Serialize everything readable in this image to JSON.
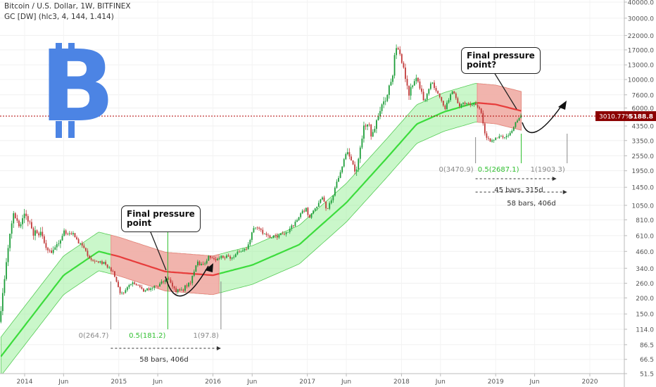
{
  "header": {
    "symbol_line": "Bitcoin / U.S. Dollar, 1W, BITFINEX",
    "indicator_line": "GC [DW] (hlc3, 4, 144, 1.414)"
  },
  "logo": {
    "glyph": "B",
    "color": "#4c84e4"
  },
  "colors": {
    "green_line": "#3cdc3c",
    "green_band": "#9ef09e",
    "red_line": "#e83c3c",
    "red_band": "#f8a8a8",
    "price_line": "#b00000",
    "candle_up": "#1e9e3a",
    "candle_down": "#c23a3a"
  },
  "chart_data": {
    "type": "candlestick",
    "y_scale": "log",
    "ylim": [
      51.5,
      40000
    ],
    "y_ticks": [
      "40000.0",
      "30000.0",
      "22000.0",
      "17000.0",
      "13000.0",
      "10000.0",
      "7600.0",
      "6000.0",
      "4350.0",
      "3350.0",
      "2550.0",
      "1950.0",
      "1450.0",
      "1050.0",
      "810.0",
      "610.0",
      "460.0",
      "340.0",
      "260.0",
      "200.0",
      "150.0",
      "114.0",
      "86.5",
      "66.5",
      "51.5"
    ],
    "x_ticks": [
      "2014",
      "Jun",
      "2015",
      "Jun",
      "2016",
      "Jun",
      "2017",
      "Jun",
      "2018",
      "Jun",
      "2019",
      "Jun",
      "2020"
    ],
    "current_price": {
      "label": "3010.77%",
      "value": "5188.8"
    },
    "price_path": [
      [
        "2013-10-01",
        130
      ],
      [
        "2013-11-25",
        950
      ],
      [
        "2013-12-15",
        700
      ],
      [
        "2014-01-10",
        900
      ],
      [
        "2014-02-10",
        650
      ],
      [
        "2014-03-10",
        620
      ],
      [
        "2014-04-15",
        450
      ],
      [
        "2014-05-20",
        560
      ],
      [
        "2014-06-10",
        650
      ],
      [
        "2014-07-15",
        620
      ],
      [
        "2014-08-20",
        500
      ],
      [
        "2014-09-20",
        400
      ],
      [
        "2014-10-15",
        380
      ],
      [
        "2014-11-15",
        370
      ],
      [
        "2014-12-15",
        320
      ],
      [
        "2015-01-15",
        210
      ],
      [
        "2015-02-15",
        250
      ],
      [
        "2015-03-15",
        260
      ],
      [
        "2015-04-15",
        230
      ],
      [
        "2015-05-15",
        237
      ],
      [
        "2015-06-15",
        250
      ],
      [
        "2015-07-10",
        290
      ],
      [
        "2015-08-20",
        225
      ],
      [
        "2015-09-15",
        235
      ],
      [
        "2015-10-15",
        270
      ],
      [
        "2015-11-05",
        380
      ],
      [
        "2015-12-01",
        360
      ],
      [
        "2015-12-25",
        430
      ],
      [
        "2016-01-15",
        390
      ],
      [
        "2016-02-15",
        420
      ],
      [
        "2016-03-15",
        415
      ],
      [
        "2016-04-15",
        450
      ],
      [
        "2016-05-15",
        470
      ],
      [
        "2016-06-15",
        700
      ],
      [
        "2016-07-15",
        660
      ],
      [
        "2016-08-15",
        580
      ],
      [
        "2016-09-15",
        610
      ],
      [
        "2016-10-15",
        640
      ],
      [
        "2016-11-15",
        740
      ],
      [
        "2016-12-15",
        920
      ],
      [
        "2017-01-05",
        1000
      ],
      [
        "2017-01-15",
        830
      ],
      [
        "2017-02-15",
        1050
      ],
      [
        "2017-03-10",
        1200
      ],
      [
        "2017-03-25",
        960
      ],
      [
        "2017-04-15",
        1200
      ],
      [
        "2017-05-15",
        1900
      ],
      [
        "2017-06-10",
        2700
      ],
      [
        "2017-07-15",
        1950
      ],
      [
        "2017-08-15",
        4200
      ],
      [
        "2017-09-05",
        4600
      ],
      [
        "2017-09-15",
        3500
      ],
      [
        "2017-10-15",
        5600
      ],
      [
        "2017-11-10",
        7000
      ],
      [
        "2017-12-05",
        11000
      ],
      [
        "2017-12-17",
        19000
      ],
      [
        "2018-01-10",
        13500
      ],
      [
        "2018-02-06",
        7500
      ],
      [
        "2018-03-05",
        11000
      ],
      [
        "2018-04-05",
        6800
      ],
      [
        "2018-05-05",
        9500
      ],
      [
        "2018-06-25",
        6000
      ],
      [
        "2018-07-25",
        8200
      ],
      [
        "2018-08-15",
        6300
      ],
      [
        "2018-09-15",
        6500
      ],
      [
        "2018-10-15",
        6500
      ],
      [
        "2018-11-15",
        5500
      ],
      [
        "2018-11-25",
        3900
      ],
      [
        "2018-12-15",
        3300
      ],
      [
        "2019-01-15",
        3600
      ],
      [
        "2019-02-15",
        3600
      ],
      [
        "2019-03-15",
        4000
      ],
      [
        "2019-04-03",
        5000
      ],
      [
        "2019-04-10",
        5189
      ]
    ],
    "indicator": {
      "name": "GC [DW]",
      "center_path": [
        [
          "2013-10-01",
          70
        ],
        [
          "2014-06-01",
          300
        ],
        [
          "2014-10-15",
          460
        ],
        [
          "2015-01-01",
          420
        ],
        [
          "2015-07-01",
          320
        ],
        [
          "2016-01-01",
          300
        ],
        [
          "2016-06-01",
          360
        ],
        [
          "2016-12-01",
          520
        ],
        [
          "2017-06-01",
          1100
        ],
        [
          "2017-11-01",
          2400
        ],
        [
          "2018-03-01",
          4500
        ],
        [
          "2018-06-15",
          5600
        ],
        [
          "2018-10-15",
          6600
        ],
        [
          "2019-01-01",
          6400
        ],
        [
          "2019-04-10",
          5700
        ]
      ],
      "band_multiplier": 1.414,
      "red_segments": [
        [
          "2014-12-01",
          "2016-02-01"
        ],
        [
          "2018-10-15",
          "2019-04-20"
        ]
      ]
    },
    "annotations": [
      {
        "text": "Final pressure\npoint",
        "date": "2015-07-05",
        "value": 300
      },
      {
        "text": "Final pressure\npoint?",
        "date": "2019-04-10",
        "value": 5189
      }
    ],
    "fib_groups": [
      {
        "levels": [
          {
            "text": "0(264.7)",
            "date": "2014-12-01",
            "color": "#888888"
          },
          {
            "text": "0.5(181.2)",
            "date": "2015-07-10",
            "color": "#2fbf2f"
          },
          {
            "text": "1(97.8)",
            "date": "2016-02-01",
            "color": "#888888"
          }
        ],
        "duration_label": "58 bars, 406d"
      },
      {
        "levels": [
          {
            "text": "0(3470.9)",
            "date": "2018-10-15",
            "color": "#888888"
          },
          {
            "text": "0.5(2687.1)",
            "date": "2019-04-10",
            "color": "#2fbf2f"
          },
          {
            "text": "1(1903.3)",
            "date": "2019-10-05",
            "color": "#888888"
          }
        ],
        "duration_labels": [
          "45 bars, 315d",
          "58 bars, 406d"
        ]
      }
    ]
  }
}
